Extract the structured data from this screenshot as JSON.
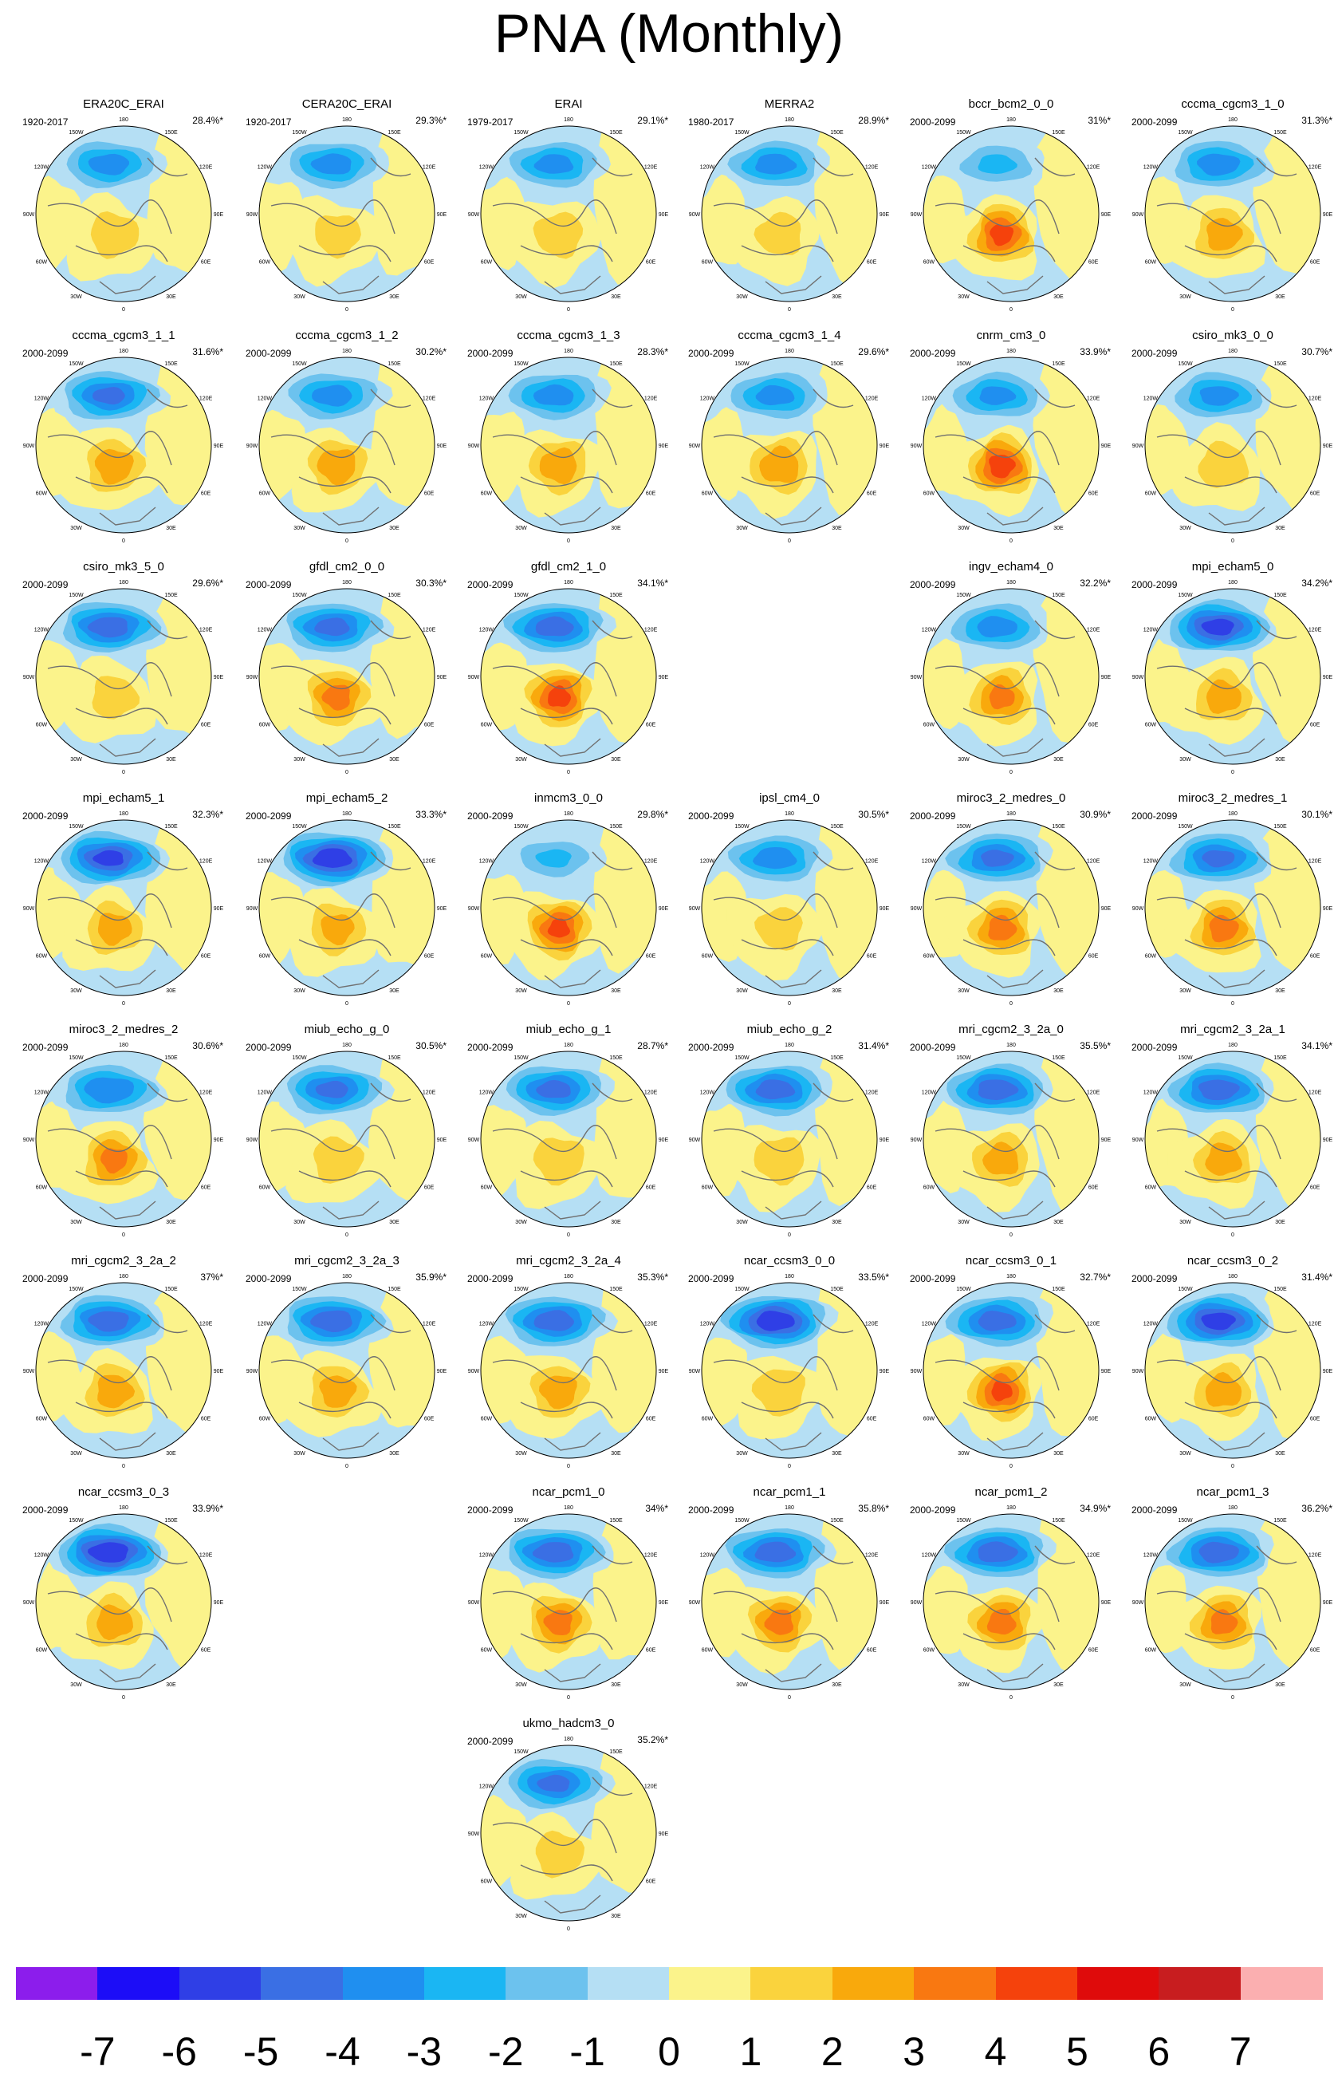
{
  "title": "PNA (Monthly)",
  "colorbar": {
    "labels": [
      "-7",
      "-6",
      "-5",
      "-4",
      "-3",
      "-2",
      "-1",
      "0",
      "1",
      "2",
      "3",
      "4",
      "5",
      "6",
      "7"
    ],
    "colors": [
      "#8c1dec",
      "#1c0df7",
      "#2f3fe6",
      "#3a6fe4",
      "#1f8ff0",
      "#1ab6f3",
      "#6cc2ee",
      "#b5dff4",
      "#fbf38b",
      "#fad33d",
      "#f9a90c",
      "#f97811",
      "#f5420c",
      "#df0b0b",
      "#c81d1f",
      "#fbafb0"
    ]
  },
  "coast_color": "#707070",
  "lon_labels": [
    "180",
    "150E",
    "120E",
    "90E",
    "60E",
    "30E",
    "0",
    "30W",
    "60W",
    "90W",
    "120W",
    "150W"
  ],
  "panels": [
    {
      "name": "ERA20C_ERAI",
      "period": "1920-2017",
      "pct": "28.4%*",
      "neg": -4.5,
      "pos": 2.2
    },
    {
      "name": "CERA20C_ERAI",
      "period": "1920-2017",
      "pct": "29.3%*",
      "neg": -4.5,
      "pos": 2.0
    },
    {
      "name": "ERAI",
      "period": "1979-2017",
      "pct": "29.1%*",
      "neg": -4.4,
      "pos": 2.2
    },
    {
      "name": "MERRA2",
      "period": "1980-2017",
      "pct": "28.9%*",
      "neg": -4.5,
      "pos": 2.0
    },
    {
      "name": "bccr_bcm2_0_0",
      "period": "2000-2099",
      "pct": "31%*",
      "neg": -3.3,
      "pos": 5.2
    },
    {
      "name": "cccma_cgcm3_1_0",
      "period": "2000-2099",
      "pct": "31.3%*",
      "neg": -4.6,
      "pos": 3.2
    },
    {
      "name": "cccma_cgcm3_1_1",
      "period": "2000-2099",
      "pct": "31.6%*",
      "neg": -5.2,
      "pos": 3.4
    },
    {
      "name": "cccma_cgcm3_1_2",
      "period": "2000-2099",
      "pct": "30.2%*",
      "neg": -4.5,
      "pos": 3.5
    },
    {
      "name": "cccma_cgcm3_1_3",
      "period": "2000-2099",
      "pct": "28.3%*",
      "neg": -4.5,
      "pos": 3.4
    },
    {
      "name": "cccma_cgcm3_1_4",
      "period": "2000-2099",
      "pct": "29.6%*",
      "neg": -4.4,
      "pos": 3.6
    },
    {
      "name": "cnrm_cm3_0",
      "period": "2000-2099",
      "pct": "33.9%*",
      "neg": -4.3,
      "pos": 5.5
    },
    {
      "name": "csiro_mk3_0_0",
      "period": "2000-2099",
      "pct": "30.7%*",
      "neg": -4.4,
      "pos": 2.3
    },
    {
      "name": "csiro_mk3_5_0",
      "period": "2000-2099",
      "pct": "29.6%*",
      "neg": -5.6,
      "pos": 2.0
    },
    {
      "name": "gfdl_cm2_0_0",
      "period": "2000-2099",
      "pct": "30.3%*",
      "neg": -5.3,
      "pos": 4.2
    },
    {
      "name": "gfdl_cm2_1_0",
      "period": "2000-2099",
      "pct": "34.1%*",
      "neg": -5.5,
      "pos": 5.2
    },
    null,
    {
      "name": "ingv_echam4_0",
      "period": "2000-2099",
      "pct": "32.2%*",
      "neg": -4.5,
      "pos": 4.0
    },
    {
      "name": "mpi_echam5_0",
      "period": "2000-2099",
      "pct": "34.2%*",
      "neg": -6.2,
      "pos": 3.2
    },
    {
      "name": "mpi_echam5_1",
      "period": "2000-2099",
      "pct": "32.3%*",
      "neg": -6.1,
      "pos": 3.1
    },
    {
      "name": "mpi_echam5_2",
      "period": "2000-2099",
      "pct": "33.3%*",
      "neg": -6.6,
      "pos": 3.0
    },
    {
      "name": "inmcm3_0_0",
      "period": "2000-2099",
      "pct": "29.8%*",
      "neg": -3.2,
      "pos": 5.0
    },
    {
      "name": "ipsl_cm4_0",
      "period": "2000-2099",
      "pct": "30.5%*",
      "neg": -4.6,
      "pos": 2.0
    },
    {
      "name": "miroc3_2_medres_0",
      "period": "2000-2099",
      "pct": "30.9%*",
      "neg": -5.2,
      "pos": 4.2
    },
    {
      "name": "miroc3_2_medres_1",
      "period": "2000-2099",
      "pct": "30.1%*",
      "neg": -5.2,
      "pos": 4.3
    },
    {
      "name": "miroc3_2_medres_2",
      "period": "2000-2099",
      "pct": "30.6%*",
      "neg": -5.0,
      "pos": 4.1
    },
    {
      "name": "miub_echo_g_0",
      "period": "2000-2099",
      "pct": "30.5%*",
      "neg": -5.2,
      "pos": 2.3
    },
    {
      "name": "miub_echo_g_1",
      "period": "2000-2099",
      "pct": "28.7%*",
      "neg": -5.3,
      "pos": 2.4
    },
    {
      "name": "miub_echo_g_2",
      "period": "2000-2099",
      "pct": "31.4%*",
      "neg": -5.5,
      "pos": 2.4
    },
    {
      "name": "mri_cgcm2_3_2a_0",
      "period": "2000-2099",
      "pct": "35.5%*",
      "neg": -5.6,
      "pos": 3.2
    },
    {
      "name": "mri_cgcm2_3_2a_1",
      "period": "2000-2099",
      "pct": "34.1%*",
      "neg": -5.6,
      "pos": 3.2
    },
    {
      "name": "mri_cgcm2_3_2a_2",
      "period": "2000-2099",
      "pct": "37%*",
      "neg": -5.6,
      "pos": 3.3
    },
    {
      "name": "mri_cgcm2_3_2a_3",
      "period": "2000-2099",
      "pct": "35.9%*",
      "neg": -5.7,
      "pos": 3.2
    },
    {
      "name": "mri_cgcm2_3_2a_4",
      "period": "2000-2099",
      "pct": "35.3%*",
      "neg": -5.6,
      "pos": 3.3
    },
    {
      "name": "ncar_ccsm3_0_0",
      "period": "2000-2099",
      "pct": "33.5%*",
      "neg": -6.6,
      "pos": 2.5
    },
    {
      "name": "ncar_ccsm3_0_1",
      "period": "2000-2099",
      "pct": "32.7%*",
      "neg": -5.5,
      "pos": 5.0
    },
    {
      "name": "ncar_ccsm3_0_2",
      "period": "2000-2099",
      "pct": "31.4%*",
      "neg": -6.3,
      "pos": 3.3
    },
    {
      "name": "ncar_ccsm3_0_3",
      "period": "2000-2099",
      "pct": "33.9%*",
      "neg": -6.7,
      "pos": 3.3
    },
    null,
    {
      "name": "ncar_pcm1_0",
      "period": "2000-2099",
      "pct": "34%*",
      "neg": -5.6,
      "pos": 4.2
    },
    {
      "name": "ncar_pcm1_1",
      "period": "2000-2099",
      "pct": "35.8%*",
      "neg": -5.6,
      "pos": 4.2
    },
    {
      "name": "ncar_pcm1_2",
      "period": "2000-2099",
      "pct": "34.9%*",
      "neg": -5.6,
      "pos": 4.2
    },
    {
      "name": "ncar_pcm1_3",
      "period": "2000-2099",
      "pct": "36.2%*",
      "neg": -5.6,
      "pos": 4.1
    },
    null,
    null,
    {
      "name": "ukmo_hadcm3_0",
      "period": "2000-2099",
      "pct": "35.2%*",
      "neg": -5.2,
      "pos": 2.2
    }
  ],
  "chart_data": {
    "type": "heatmap",
    "title": "PNA (Monthly)",
    "colorbar_ticks": [
      -7,
      -6,
      -5,
      -4,
      -3,
      -2,
      -1,
      0,
      1,
      2,
      3,
      4,
      5,
      6,
      7
    ],
    "series": [
      {
        "name": "ERA20C_ERAI",
        "period": "1920-2017",
        "variance_explained_pct": 28.4,
        "min": -4.5,
        "max": 2.2
      },
      {
        "name": "CERA20C_ERAI",
        "period": "1920-2017",
        "variance_explained_pct": 29.3,
        "min": -4.5,
        "max": 2.0
      },
      {
        "name": "ERAI",
        "period": "1979-2017",
        "variance_explained_pct": 29.1,
        "min": -4.4,
        "max": 2.2
      },
      {
        "name": "MERRA2",
        "period": "1980-2017",
        "variance_explained_pct": 28.9,
        "min": -4.5,
        "max": 2.0
      },
      {
        "name": "bccr_bcm2_0_0",
        "period": "2000-2099",
        "variance_explained_pct": 31,
        "min": -3.3,
        "max": 5.2
      },
      {
        "name": "cccma_cgcm3_1_0",
        "period": "2000-2099",
        "variance_explained_pct": 31.3,
        "min": -4.6,
        "max": 3.2
      },
      {
        "name": "cccma_cgcm3_1_1",
        "period": "2000-2099",
        "variance_explained_pct": 31.6,
        "min": -5.2,
        "max": 3.4
      },
      {
        "name": "cccma_cgcm3_1_2",
        "period": "2000-2099",
        "variance_explained_pct": 30.2,
        "min": -4.5,
        "max": 3.5
      },
      {
        "name": "cccma_cgcm3_1_3",
        "period": "2000-2099",
        "variance_explained_pct": 28.3,
        "min": -4.5,
        "max": 3.4
      },
      {
        "name": "cccma_cgcm3_1_4",
        "period": "2000-2099",
        "variance_explained_pct": 29.6,
        "min": -4.4,
        "max": 3.6
      },
      {
        "name": "cnrm_cm3_0",
        "period": "2000-2099",
        "variance_explained_pct": 33.9,
        "min": -4.3,
        "max": 5.5
      },
      {
        "name": "csiro_mk3_0_0",
        "period": "2000-2099",
        "variance_explained_pct": 30.7,
        "min": -4.4,
        "max": 2.3
      },
      {
        "name": "csiro_mk3_5_0",
        "period": "2000-2099",
        "variance_explained_pct": 29.6,
        "min": -5.6,
        "max": 2.0
      },
      {
        "name": "gfdl_cm2_0_0",
        "period": "2000-2099",
        "variance_explained_pct": 30.3,
        "min": -5.3,
        "max": 4.2
      },
      {
        "name": "gfdl_cm2_1_0",
        "period": "2000-2099",
        "variance_explained_pct": 34.1,
        "min": -5.5,
        "max": 5.2
      },
      {
        "name": "ingv_echam4_0",
        "period": "2000-2099",
        "variance_explained_pct": 32.2,
        "min": -4.5,
        "max": 4.0
      },
      {
        "name": "mpi_echam5_0",
        "period": "2000-2099",
        "variance_explained_pct": 34.2,
        "min": -6.2,
        "max": 3.2
      },
      {
        "name": "mpi_echam5_1",
        "period": "2000-2099",
        "variance_explained_pct": 32.3,
        "min": -6.1,
        "max": 3.1
      },
      {
        "name": "mpi_echam5_2",
        "period": "2000-2099",
        "variance_explained_pct": 33.3,
        "min": -6.6,
        "max": 3.0
      },
      {
        "name": "inmcm3_0_0",
        "period": "2000-2099",
        "variance_explained_pct": 29.8,
        "min": -3.2,
        "max": 5.0
      },
      {
        "name": "ipsl_cm4_0",
        "period": "2000-2099",
        "variance_explained_pct": 30.5,
        "min": -4.6,
        "max": 2.0
      },
      {
        "name": "miroc3_2_medres_0",
        "period": "2000-2099",
        "variance_explained_pct": 30.9,
        "min": -5.2,
        "max": 4.2
      },
      {
        "name": "miroc3_2_medres_1",
        "period": "2000-2099",
        "variance_explained_pct": 30.1,
        "min": -5.2,
        "max": 4.3
      },
      {
        "name": "miroc3_2_medres_2",
        "period": "2000-2099",
        "variance_explained_pct": 30.6,
        "min": -5.0,
        "max": 4.1
      },
      {
        "name": "miub_echo_g_0",
        "period": "2000-2099",
        "variance_explained_pct": 30.5,
        "min": -5.2,
        "max": 2.3
      },
      {
        "name": "miub_echo_g_1",
        "period": "2000-2099",
        "variance_explained_pct": 28.7,
        "min": -5.3,
        "max": 2.4
      },
      {
        "name": "miub_echo_g_2",
        "period": "2000-2099",
        "variance_explained_pct": 31.4,
        "min": -5.5,
        "max": 2.4
      },
      {
        "name": "mri_cgcm2_3_2a_0",
        "period": "2000-2099",
        "variance_explained_pct": 35.5,
        "min": -5.6,
        "max": 3.2
      },
      {
        "name": "mri_cgcm2_3_2a_1",
        "period": "2000-2099",
        "variance_explained_pct": 34.1,
        "min": -5.6,
        "max": 3.2
      },
      {
        "name": "mri_cgcm2_3_2a_2",
        "period": "2000-2099",
        "variance_explained_pct": 37,
        "min": -5.6,
        "max": 3.3
      },
      {
        "name": "mri_cgcm2_3_2a_3",
        "period": "2000-2099",
        "variance_explained_pct": 35.9,
        "min": -5.7,
        "max": 3.2
      },
      {
        "name": "mri_cgcm2_3_2a_4",
        "period": "2000-2099",
        "variance_explained_pct": 35.3,
        "min": -5.6,
        "max": 3.3
      },
      {
        "name": "ncar_ccsm3_0_0",
        "period": "2000-2099",
        "variance_explained_pct": 33.5,
        "min": -6.6,
        "max": 2.5
      },
      {
        "name": "ncar_ccsm3_0_1",
        "period": "2000-2099",
        "variance_explained_pct": 32.7,
        "min": -5.5,
        "max": 5.0
      },
      {
        "name": "ncar_ccsm3_0_2",
        "period": "2000-2099",
        "variance_explained_pct": 31.4,
        "min": -6.3,
        "max": 3.3
      },
      {
        "name": "ncar_ccsm3_0_3",
        "period": "2000-2099",
        "variance_explained_pct": 33.9,
        "min": -6.7,
        "max": 3.3
      },
      {
        "name": "ncar_pcm1_0",
        "period": "2000-2099",
        "variance_explained_pct": 34,
        "min": -5.6,
        "max": 4.2
      },
      {
        "name": "ncar_pcm1_1",
        "period": "2000-2099",
        "variance_explained_pct": 35.8,
        "min": -5.6,
        "max": 4.2
      },
      {
        "name": "ncar_pcm1_2",
        "period": "2000-2099",
        "variance_explained_pct": 34.9,
        "min": -5.6,
        "max": 4.2
      },
      {
        "name": "ncar_pcm1_3",
        "period": "2000-2099",
        "variance_explained_pct": 36.2,
        "min": -5.6,
        "max": 4.1
      },
      {
        "name": "ukmo_hadcm3_0",
        "period": "2000-2099",
        "variance_explained_pct": 35.2,
        "min": -5.2,
        "max": 2.2
      }
    ]
  }
}
